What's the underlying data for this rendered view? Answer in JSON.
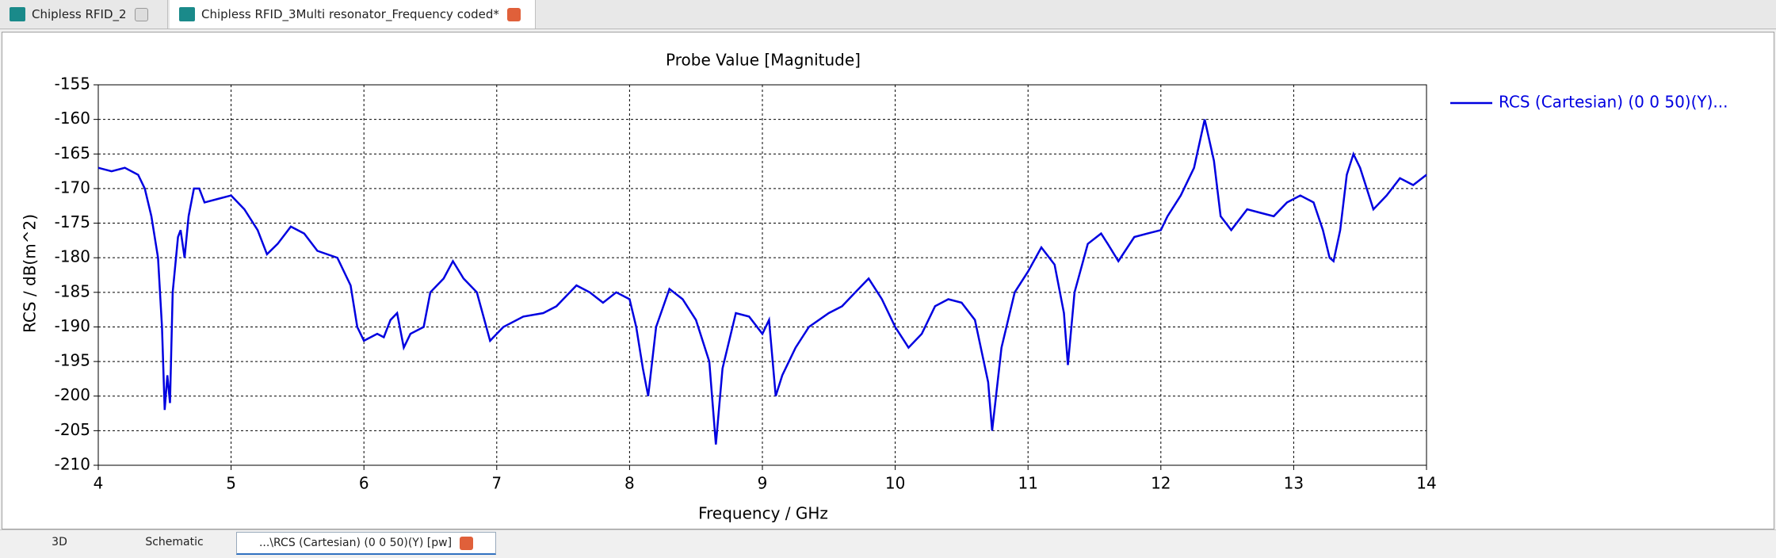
{
  "tabs": [
    "Chipless RFID_2",
    "Chipless RFID_3Multi resonator_Frequency coded*"
  ],
  "bottom_tabs": [
    "3D",
    "Schematic",
    "...\\RCS (Cartesian) (0 0 50)(Y) [pw]"
  ],
  "chart_data": {
    "type": "line",
    "title": "Probe Value [Magnitude]",
    "x_label": "Frequency / GHz",
    "y_label": "RCS / dB(m^2)",
    "xlim": [
      4,
      14
    ],
    "xticks": [
      4,
      5,
      6,
      7,
      8,
      9,
      10,
      11,
      12,
      13,
      14
    ],
    "ylim": [
      -210,
      -155
    ],
    "yticks": [
      -155,
      -160,
      -165,
      -170,
      -175,
      -180,
      -185,
      -190,
      -195,
      -200,
      -205,
      -210
    ],
    "grid": true,
    "legend": "right",
    "series": [
      {
        "name": "RCS (Cartesian) (0 0 50)(Y)...",
        "color": "#0000e0",
        "x": [
          4.0,
          4.1,
          4.2,
          4.3,
          4.35,
          4.4,
          4.45,
          4.48,
          4.5,
          4.52,
          4.54,
          4.56,
          4.6,
          4.62,
          4.65,
          4.68,
          4.72,
          4.76,
          4.8,
          4.9,
          5.0,
          5.1,
          5.2,
          5.27,
          5.35,
          5.45,
          5.55,
          5.65,
          5.8,
          5.9,
          5.95,
          6.0,
          6.1,
          6.15,
          6.2,
          6.25,
          6.3,
          6.35,
          6.45,
          6.5,
          6.6,
          6.67,
          6.75,
          6.85,
          6.95,
          7.05,
          7.2,
          7.35,
          7.45,
          7.6,
          7.7,
          7.8,
          7.9,
          8.0,
          8.05,
          8.1,
          8.14,
          8.2,
          8.3,
          8.4,
          8.5,
          8.6,
          8.65,
          8.7,
          8.8,
          8.9,
          9.0,
          9.05,
          9.1,
          9.15,
          9.25,
          9.35,
          9.5,
          9.6,
          9.7,
          9.8,
          9.9,
          10.0,
          10.1,
          10.2,
          10.3,
          10.4,
          10.5,
          10.6,
          10.7,
          10.73,
          10.8,
          10.9,
          11.0,
          11.1,
          11.2,
          11.27,
          11.3,
          11.35,
          11.45,
          11.55,
          11.6,
          11.68,
          11.8,
          11.9,
          12.0,
          12.05,
          12.15,
          12.25,
          12.33,
          12.4,
          12.45,
          12.53,
          12.65,
          12.75,
          12.85,
          12.95,
          13.05,
          13.15,
          13.22,
          13.27,
          13.3,
          13.35,
          13.4,
          13.45,
          13.5,
          13.6,
          13.7,
          13.8,
          13.9,
          14.0
        ],
        "values": [
          -167,
          -167.5,
          -167,
          -168,
          -170,
          -174,
          -180,
          -190,
          -202,
          -197,
          -201,
          -185,
          -177,
          -176,
          -180,
          -174,
          -170,
          -170,
          -172,
          -171.5,
          -171,
          -173,
          -176,
          -179.5,
          -178,
          -175.5,
          -176.5,
          -179,
          -180,
          -184,
          -190,
          -192,
          -191,
          -191.5,
          -189,
          -188,
          -193,
          -191,
          -190,
          -185,
          -183,
          -180.5,
          -183,
          -185,
          -192,
          -190,
          -188.5,
          -188,
          -187,
          -184,
          -185,
          -186.5,
          -185,
          -186,
          -190,
          -196,
          -200,
          -190,
          -184.5,
          -186,
          -189,
          -195,
          -207,
          -196,
          -188,
          -188.5,
          -191,
          -189,
          -200,
          -197,
          -193,
          -190,
          -188,
          -187,
          -185,
          -183,
          -186,
          -190,
          -193,
          -191,
          -187,
          -186,
          -186.5,
          -189,
          -198,
          -205,
          -193,
          -185,
          -182,
          -178.5,
          -181,
          -188,
          -195.5,
          -185,
          -178,
          -176.5,
          -178,
          -180.5,
          -177,
          -176.5,
          -176,
          -174,
          -171,
          -167,
          -160,
          -166,
          -174,
          -176,
          -173,
          -173.5,
          -174,
          -172,
          -171,
          -172,
          -176,
          -180,
          -180.5,
          -176,
          -168,
          -165,
          -167,
          -173,
          -171,
          -168.5,
          -169.5,
          -168
        ]
      }
    ]
  }
}
